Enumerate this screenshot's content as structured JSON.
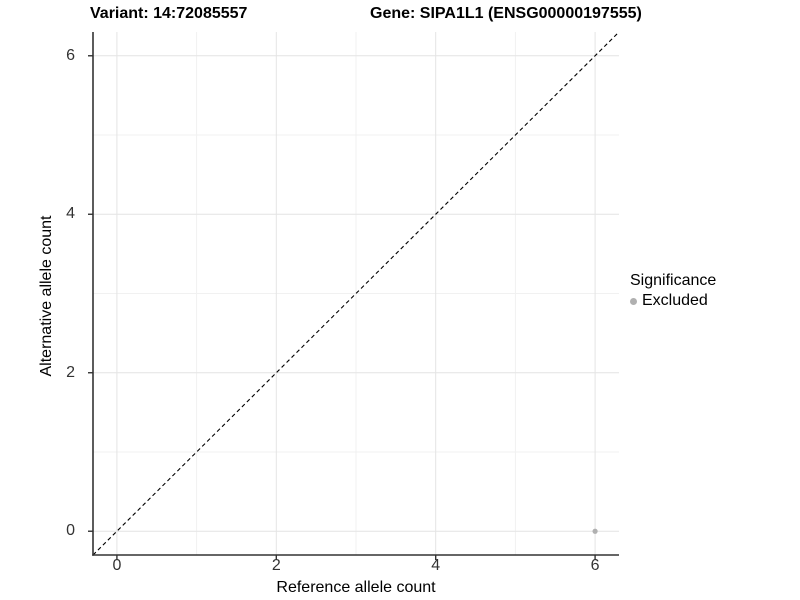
{
  "titles": {
    "variant": "Variant: 14:72085557",
    "gene": "Gene: SIPA1L1 (ENSG00000197555)"
  },
  "legend": {
    "title": "Significance",
    "items": [
      {
        "label": "Excluded",
        "color": "#b0b0b0"
      }
    ]
  },
  "chart_data": {
    "type": "scatter",
    "title": "Variant: 14:72085557 / Gene: SIPA1L1 (ENSG00000197555)",
    "xlabel": "Reference allele count",
    "ylabel": "Alternative allele count",
    "xlim": [
      -0.3,
      6.3
    ],
    "ylim": [
      -0.3,
      6.3
    ],
    "xticks": [
      0,
      2,
      4,
      6
    ],
    "yticks": [
      0,
      2,
      4,
      6
    ],
    "x_minor_ticks": [
      1,
      3,
      5
    ],
    "y_minor_ticks": [
      1,
      3,
      5
    ],
    "grid": {
      "major_color": "#e4e4e4",
      "minor_color": "#f1f1f1"
    },
    "legend_position": "right",
    "series": [
      {
        "name": "Excluded",
        "color": "#b0b0b0",
        "points": [
          {
            "x": 6,
            "y": 0
          }
        ]
      }
    ],
    "reference_line": {
      "type": "identity",
      "equation": "y = x",
      "style": "dashed",
      "color": "#000000"
    }
  }
}
